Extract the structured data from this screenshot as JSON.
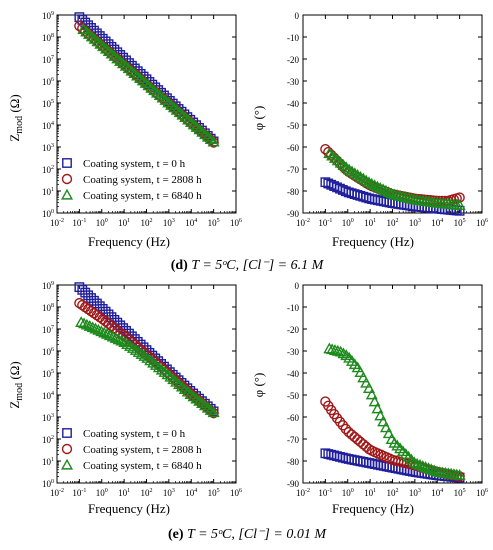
{
  "series_styles": [
    {
      "marker": "square",
      "color": "#1f1f9e"
    },
    {
      "marker": "circle",
      "color": "#a01818"
    },
    {
      "marker": "triangle",
      "color": "#1d8a1d"
    }
  ],
  "legend_labels": [
    "Coating system, t = 0 h",
    "Coating system, t = 2808 h",
    "Coating system, t = 6840 h"
  ],
  "captions": [
    {
      "letter": "(d)",
      "formula": "T = 5ᵒC, [Cl⁻] = 6.1 M"
    },
    {
      "letter": "(e)",
      "formula": "T = 5ᵒC, [Cl⁻] = 0.01 M"
    }
  ],
  "chart_data": [
    {
      "type": "scatter",
      "panel": "d-left",
      "xlabel": "Frequency (Hz)",
      "ylabel": "Zmod (Ω)",
      "xscale": "log",
      "yscale": "log",
      "xlim": [
        0.01,
        1000000
      ],
      "ylim": [
        1,
        1000000000
      ],
      "xtick_exponents": [
        -2,
        -1,
        0,
        1,
        2,
        3,
        4,
        5,
        6
      ],
      "ytick_exponents": [
        0,
        1,
        2,
        3,
        4,
        5,
        6,
        7,
        8,
        9
      ],
      "legend": "bottom-left",
      "series": [
        {
          "name": "Coating system, t = 0 h",
          "x_range": [
            0.1,
            100000
          ],
          "y_start": 800000000,
          "y_end": 1800
        },
        {
          "name": "Coating system, t = 2808 h",
          "x_range": [
            0.1,
            100000
          ],
          "y_start": 320000000,
          "y_end": 1600
        },
        {
          "name": "Coating system, t = 6840 h",
          "x_range": [
            0.15,
            100000
          ],
          "y_start": 220000000,
          "y_end": 1700
        }
      ]
    },
    {
      "type": "scatter",
      "panel": "d-right",
      "xlabel": "Frequency (Hz)",
      "ylabel": "φ (°)",
      "xscale": "log",
      "xlim": [
        0.01,
        1000000
      ],
      "ylim": [
        -90,
        0
      ],
      "xtick_exponents": [
        -2,
        -1,
        0,
        1,
        2,
        3,
        4,
        5,
        6
      ],
      "yticks": [
        -90,
        -80,
        -70,
        -60,
        -50,
        -40,
        -30,
        -20,
        -10,
        0
      ],
      "series": [
        {
          "name": "Coating system, t = 0 h",
          "points": [
            [
              0.1,
              -76
            ],
            [
              1,
              -80.5
            ],
            [
              10,
              -83.5
            ],
            [
              100,
              -85.5
            ],
            [
              1000,
              -87
            ],
            [
              10000,
              -88
            ],
            [
              100000,
              -89
            ]
          ]
        },
        {
          "name": "Coating system, t = 2808 h",
          "points": [
            [
              0.1,
              -61
            ],
            [
              1,
              -71
            ],
            [
              10,
              -77.5
            ],
            [
              100,
              -81.5
            ],
            [
              1000,
              -83.5
            ],
            [
              10000,
              -84.5
            ],
            [
              30000,
              -84.5
            ],
            [
              100000,
              -83
            ]
          ]
        },
        {
          "name": "Coating system, t = 6840 h",
          "points": [
            [
              0.15,
              -63
            ],
            [
              1,
              -70
            ],
            [
              10,
              -76.5
            ],
            [
              100,
              -81.5
            ],
            [
              1000,
              -84
            ],
            [
              10000,
              -85.5
            ],
            [
              100000,
              -86.5
            ]
          ]
        }
      ]
    },
    {
      "type": "scatter",
      "panel": "e-left",
      "xlabel": "Frequency (Hz)",
      "ylabel": "Zmod (Ω)",
      "xscale": "log",
      "yscale": "log",
      "xlim": [
        0.01,
        1000000
      ],
      "ylim": [
        1,
        1000000000
      ],
      "xtick_exponents": [
        -2,
        -1,
        0,
        1,
        2,
        3,
        4,
        5,
        6
      ],
      "ytick_exponents": [
        0,
        1,
        2,
        3,
        4,
        5,
        6,
        7,
        8,
        9
      ],
      "legend": "bottom-left",
      "series": [
        {
          "name": "Coating system, t = 0 h",
          "points": [
            [
              0.1,
              800000000
            ],
            [
              1,
              90000000
            ],
            [
              10,
              10000000
            ],
            [
              100,
              1100000
            ],
            [
              1000,
              120000
            ],
            [
              10000,
              14000
            ],
            [
              100000,
              1800
            ]
          ]
        },
        {
          "name": "Coating system, t = 2808 h",
          "points": [
            [
              0.1,
              150000000
            ],
            [
              1,
              30000000
            ],
            [
              10,
              5000000
            ],
            [
              100,
              700000
            ],
            [
              1000,
              90000
            ],
            [
              10000,
              11000
            ],
            [
              100000,
              1500
            ]
          ]
        },
        {
          "name": "Coating system, t = 6840 h",
          "points": [
            [
              0.12,
              20000000
            ],
            [
              1,
              7500000
            ],
            [
              10,
              2500000
            ],
            [
              100,
              500000
            ],
            [
              1000,
              75000
            ],
            [
              10000,
              10000
            ],
            [
              100000,
              1600
            ]
          ]
        }
      ]
    },
    {
      "type": "scatter",
      "panel": "e-right",
      "xlabel": "Frequency (Hz)",
      "ylabel": "φ (°)",
      "xscale": "log",
      "xlim": [
        0.01,
        1000000
      ],
      "ylim": [
        -90,
        0
      ],
      "xtick_exponents": [
        -2,
        -1,
        0,
        1,
        2,
        3,
        4,
        5,
        6
      ],
      "yticks": [
        -90,
        -80,
        -70,
        -60,
        -50,
        -40,
        -30,
        -20,
        -10,
        0
      ],
      "series": [
        {
          "name": "Coating system, t = 0 h",
          "points": [
            [
              0.1,
              -76.5
            ],
            [
              1,
              -79
            ],
            [
              10,
              -81
            ],
            [
              100,
              -83
            ],
            [
              1000,
              -85
            ],
            [
              10000,
              -86.5
            ],
            [
              100000,
              -87.5
            ]
          ]
        },
        {
          "name": "Coating system, t = 2808 h",
          "points": [
            [
              0.1,
              -53
            ],
            [
              0.3,
              -60
            ],
            [
              1,
              -66.5
            ],
            [
              10,
              -75
            ],
            [
              100,
              -79.5
            ],
            [
              1000,
              -82
            ],
            [
              10000,
              -85
            ],
            [
              100000,
              -87
            ]
          ]
        },
        {
          "name": "Coating system, t = 6840 h",
          "points": [
            [
              0.15,
              -29
            ],
            [
              0.5,
              -30.5
            ],
            [
              1,
              -32.5
            ],
            [
              3,
              -38
            ],
            [
              10,
              -48
            ],
            [
              30,
              -60
            ],
            [
              100,
              -71
            ],
            [
              1000,
              -81
            ],
            [
              10000,
              -85
            ],
            [
              100000,
              -86.5
            ]
          ]
        }
      ]
    }
  ]
}
